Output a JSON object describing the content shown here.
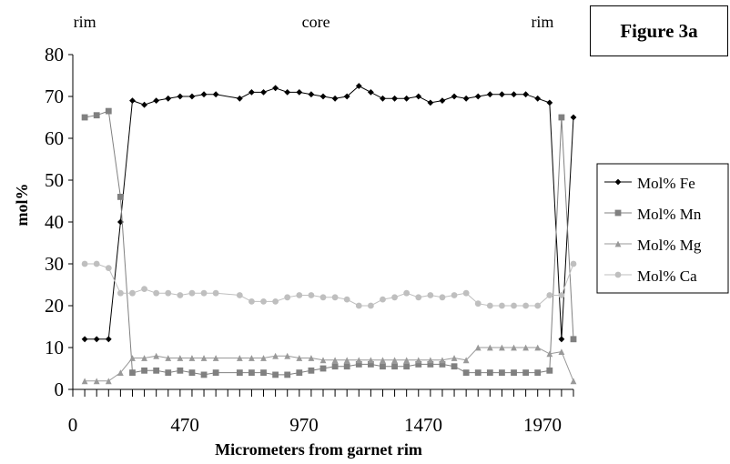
{
  "figure_label": "Figure 3a",
  "chart_data": {
    "type": "line",
    "title": "",
    "xlabel": "Micrometers from garnet rim",
    "ylabel": "mol%",
    "xlim": [
      0,
      2100
    ],
    "ylim": [
      0,
      80
    ],
    "xticks": [
      0,
      470,
      970,
      1470,
      1970
    ],
    "yticks": [
      0,
      10,
      20,
      30,
      40,
      50,
      60,
      70,
      80
    ],
    "grid": false,
    "legend_position": "right",
    "annotations": [
      {
        "text": "rim",
        "x": 50
      },
      {
        "text": "core",
        "x": 1020
      },
      {
        "text": "rim",
        "x": 1970
      }
    ],
    "x": [
      50,
      100,
      150,
      200,
      250,
      300,
      350,
      400,
      450,
      500,
      550,
      600,
      700,
      750,
      800,
      850,
      900,
      950,
      1000,
      1050,
      1100,
      1150,
      1200,
      1250,
      1300,
      1350,
      1400,
      1450,
      1500,
      1550,
      1600,
      1650,
      1700,
      1750,
      1800,
      1850,
      1900,
      1950,
      2000,
      2050,
      2100
    ],
    "series": [
      {
        "name": "Mol% Fe",
        "color": "#000000",
        "marker": "diamond",
        "values": [
          12,
          12,
          12,
          40,
          69,
          68,
          69,
          69.5,
          70,
          70,
          70.5,
          70.5,
          69.5,
          71,
          71,
          72,
          71,
          71,
          70.5,
          70,
          69.5,
          70,
          72.5,
          71,
          69.5,
          69.5,
          69.5,
          70,
          68.5,
          69,
          70,
          69.5,
          70,
          70.5,
          70.5,
          70.5,
          70.5,
          69.5,
          68.5,
          12,
          65
        ]
      },
      {
        "name": "Mol% Mn",
        "color": "#808080",
        "marker": "square",
        "values": [
          65,
          65.5,
          66.5,
          46,
          4,
          4.5,
          4.5,
          4,
          4.5,
          4,
          3.5,
          4,
          4,
          4,
          4,
          3.5,
          3.5,
          4,
          4.5,
          5,
          5.5,
          5.5,
          6,
          6,
          5.5,
          5.5,
          5.5,
          6,
          6,
          6,
          5.5,
          4,
          4,
          4,
          4,
          4,
          4,
          4,
          4.5,
          65,
          12
        ]
      },
      {
        "name": "Mol% Mg",
        "color": "#999999",
        "marker": "triangle",
        "values": [
          2,
          2,
          2,
          4,
          7.5,
          7.5,
          8,
          7.5,
          7.5,
          7.5,
          7.5,
          7.5,
          7.5,
          7.5,
          7.5,
          8,
          8,
          7.5,
          7.5,
          7,
          7,
          7,
          7,
          7,
          7,
          7,
          7,
          7,
          7,
          7,
          7.5,
          7,
          10,
          10,
          10,
          10,
          10,
          10,
          8.5,
          9,
          2
        ]
      },
      {
        "name": "Mol% Ca",
        "color": "#bfbfbf",
        "marker": "circle",
        "values": [
          30,
          30,
          29,
          23,
          23,
          24,
          23,
          23,
          22.5,
          23,
          23,
          23,
          22.5,
          21,
          21,
          21,
          22,
          22.5,
          22.5,
          22,
          22,
          21.5,
          20,
          20,
          21.5,
          22,
          23,
          22,
          22.5,
          22,
          22.5,
          23,
          20.5,
          20,
          20,
          20,
          20,
          20,
          22.5,
          22.5,
          30
        ]
      }
    ]
  }
}
